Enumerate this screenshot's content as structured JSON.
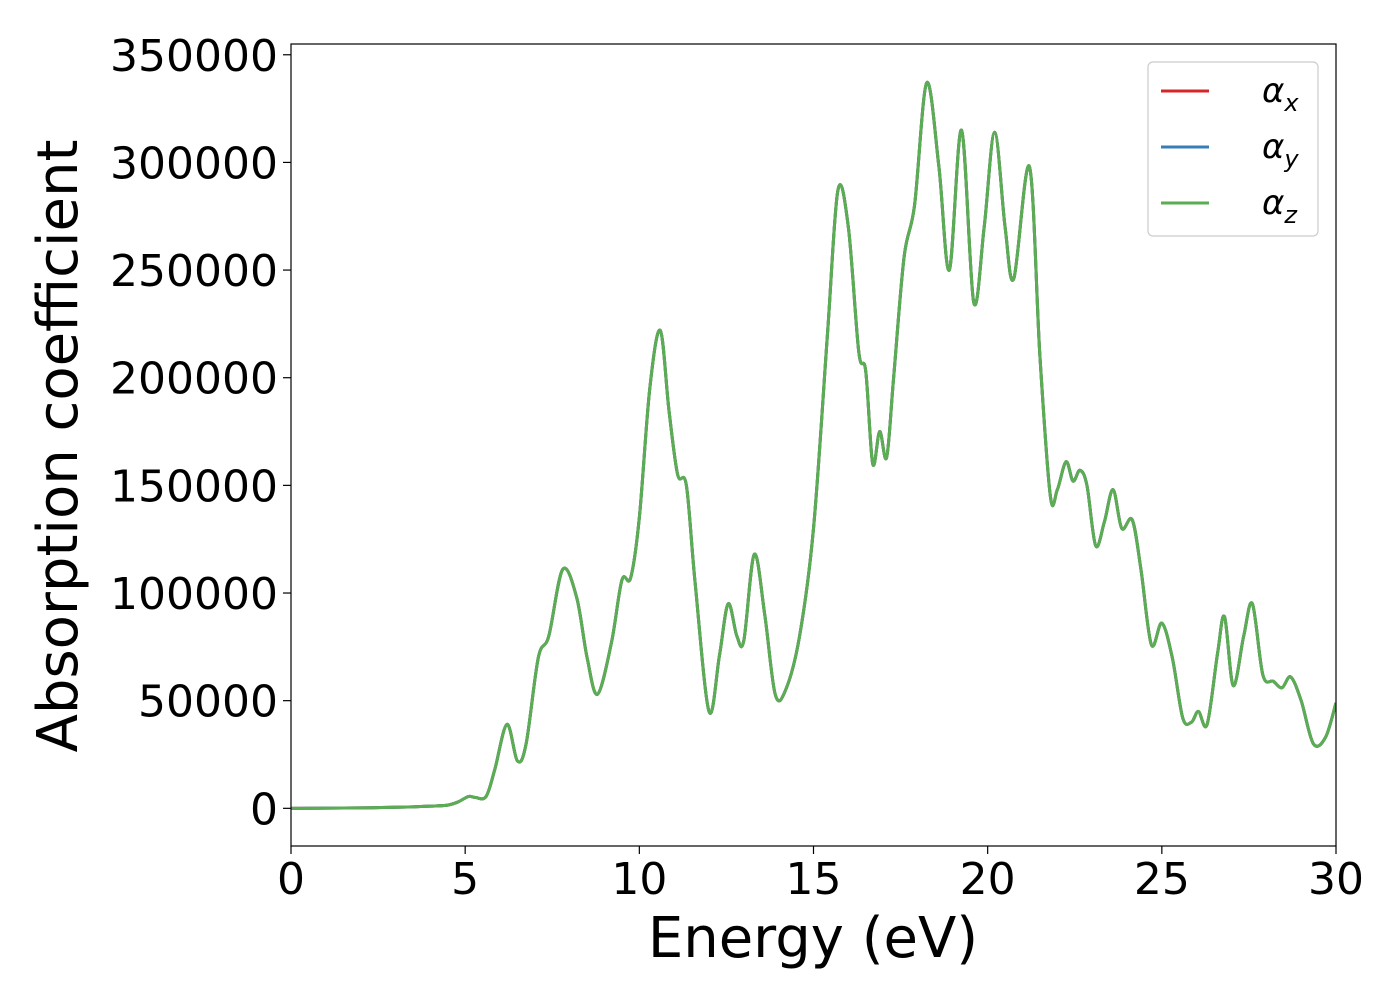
{
  "chart_data": {
    "type": "line",
    "xlabel": "Energy (eV)",
    "ylabel": "Absorption coefficient",
    "xlim": [
      0,
      30
    ],
    "ylim": [
      -17500,
      355000
    ],
    "x_ticks": [
      0,
      5,
      10,
      15,
      20,
      25,
      30
    ],
    "y_ticks": [
      0,
      50000,
      100000,
      150000,
      200000,
      250000,
      300000,
      350000
    ],
    "grid": false,
    "legend_position": "top-right",
    "x": [
      0,
      1,
      2,
      3,
      3.5,
      4,
      4.5,
      4.8,
      5.1,
      5.3,
      5.6,
      5.85,
      6.2,
      6.5,
      6.75,
      7.1,
      7.4,
      7.8,
      8.2,
      8.5,
      8.8,
      9.2,
      9.5,
      9.75,
      10.0,
      10.3,
      10.6,
      10.85,
      11.1,
      11.35,
      11.6,
      12.0,
      12.3,
      12.55,
      12.8,
      13.0,
      13.3,
      13.6,
      13.9,
      14.2,
      14.6,
      15.0,
      15.4,
      15.7,
      16.0,
      16.3,
      16.5,
      16.7,
      16.9,
      17.1,
      17.3,
      17.6,
      17.9,
      18.25,
      18.6,
      18.9,
      19.25,
      19.6,
      19.9,
      20.2,
      20.5,
      20.75,
      21.2,
      21.5,
      21.8,
      22.0,
      22.25,
      22.45,
      22.65,
      22.85,
      23.1,
      23.35,
      23.6,
      23.85,
      24.15,
      24.4,
      24.7,
      25.0,
      25.3,
      25.6,
      25.85,
      26.05,
      26.3,
      26.6,
      26.8,
      27.05,
      27.35,
      27.6,
      27.9,
      28.2,
      28.45,
      28.7,
      29.0,
      29.35,
      29.7,
      30.0
    ],
    "series": [
      {
        "name": "α_x",
        "color": "#d62728",
        "y": [
          0,
          100,
          200,
          500,
          700,
          1000,
          1500,
          3000,
          5500,
          5000,
          5500,
          18000,
          39000,
          22000,
          30000,
          70000,
          80000,
          111000,
          98000,
          70000,
          53000,
          77000,
          106000,
          107000,
          135000,
          195000,
          222000,
          185000,
          155000,
          150000,
          105000,
          45000,
          71000,
          95000,
          80000,
          78000,
          118000,
          90000,
          53000,
          55000,
          80000,
          130000,
          220000,
          287000,
          270000,
          212000,
          203000,
          160000,
          175000,
          163000,
          200000,
          256000,
          280000,
          337000,
          298000,
          250000,
          315000,
          235000,
          270000,
          314000,
          270000,
          246000,
          298000,
          210000,
          145000,
          148000,
          161000,
          152000,
          157000,
          150000,
          122000,
          133000,
          148000,
          130000,
          134000,
          111000,
          76000,
          86000,
          70000,
          42000,
          40000,
          45000,
          39000,
          72000,
          89000,
          57000,
          80000,
          95000,
          62000,
          59000,
          56000,
          61000,
          50000,
          30000,
          33000,
          49000
        ]
      },
      {
        "name": "α_y",
        "color": "#377eb8",
        "y": [
          0,
          100,
          200,
          500,
          700,
          1000,
          1500,
          3000,
          5500,
          5000,
          5500,
          18000,
          39000,
          22000,
          30000,
          70000,
          80000,
          111000,
          98000,
          70000,
          53000,
          77000,
          106000,
          107000,
          135000,
          195000,
          222000,
          185000,
          155000,
          150000,
          105000,
          45000,
          71000,
          95000,
          80000,
          78000,
          118000,
          90000,
          53000,
          55000,
          80000,
          130000,
          220000,
          287000,
          270000,
          212000,
          203000,
          160000,
          175000,
          163000,
          200000,
          256000,
          280000,
          337000,
          298000,
          250000,
          315000,
          235000,
          270000,
          314000,
          270000,
          246000,
          298000,
          210000,
          145000,
          148000,
          161000,
          152000,
          157000,
          150000,
          122000,
          133000,
          148000,
          130000,
          134000,
          111000,
          76000,
          86000,
          70000,
          42000,
          40000,
          45000,
          39000,
          72000,
          89000,
          57000,
          80000,
          95000,
          62000,
          59000,
          56000,
          61000,
          50000,
          30000,
          33000,
          49000
        ]
      },
      {
        "name": "α_z",
        "color": "#5aad52",
        "y": [
          0,
          100,
          200,
          500,
          700,
          1000,
          1500,
          3000,
          5500,
          5000,
          5500,
          18000,
          39000,
          22000,
          30000,
          70000,
          80000,
          111000,
          98000,
          70000,
          53000,
          77000,
          106000,
          107000,
          135000,
          195000,
          222000,
          185000,
          155000,
          150000,
          105000,
          45000,
          71000,
          95000,
          80000,
          78000,
          118000,
          90000,
          53000,
          55000,
          80000,
          130000,
          220000,
          287000,
          270000,
          212000,
          203000,
          160000,
          175000,
          163000,
          200000,
          256000,
          280000,
          337000,
          298000,
          250000,
          315000,
          235000,
          270000,
          314000,
          270000,
          246000,
          298000,
          210000,
          145000,
          148000,
          161000,
          152000,
          157000,
          150000,
          122000,
          133000,
          148000,
          130000,
          134000,
          111000,
          76000,
          86000,
          70000,
          42000,
          40000,
          45000,
          39000,
          72000,
          89000,
          57000,
          80000,
          95000,
          62000,
          59000,
          56000,
          61000,
          50000,
          30000,
          33000,
          49000
        ]
      }
    ],
    "legend": [
      {
        "base": "α",
        "sub": "x"
      },
      {
        "base": "α",
        "sub": "y"
      },
      {
        "base": "α",
        "sub": "z"
      }
    ]
  }
}
